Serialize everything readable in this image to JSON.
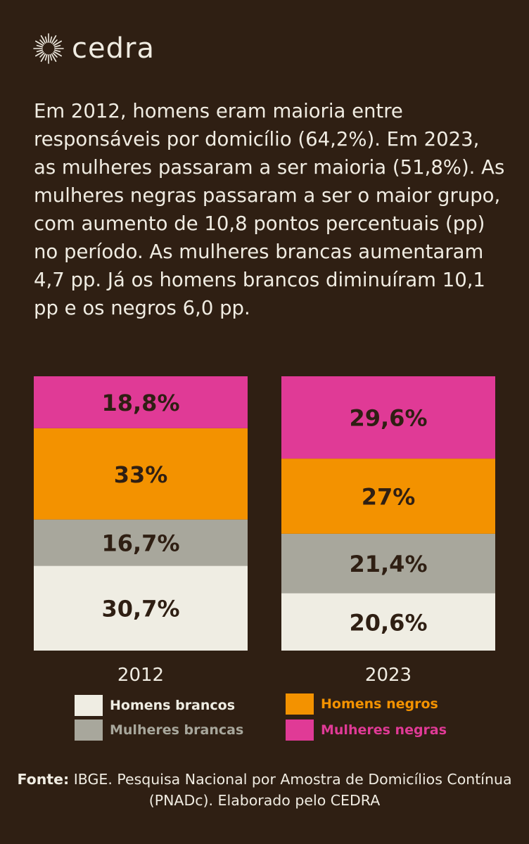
{
  "brand": {
    "name": "cedra",
    "logo_icon": "sun-burst-icon"
  },
  "intro": "Em 2012, homens eram maioria entre responsáveis por domicílio (64,2%). Em 2023, as mulheres passaram a ser maioria (51,8%). As mulheres negras passaram a ser o maior grupo, com aumento de 10,8 pontos percentuais (pp) no período. As mulheres brancas aumentaram 4,7 pp. Já os homens brancos diminuíram 10,1 pp e os negros 6,0 pp.",
  "colors": {
    "background": "#2f1f13",
    "homens_brancos": "#efede3",
    "mulheres_brancas": "#a8a79c",
    "homens_negros": "#f39200",
    "mulheres_negras": "#e03a96",
    "text_dark": "#2f1f13",
    "text_light": "#f0ece2"
  },
  "chart_data": {
    "type": "bar",
    "stacked": true,
    "categories": [
      "2012",
      "2023"
    ],
    "series": [
      {
        "name": "Homens brancos",
        "key": "homens_brancos",
        "values": [
          30.7,
          20.6
        ],
        "labels": [
          "30,7%",
          "20,6%"
        ]
      },
      {
        "name": "Mulheres brancas",
        "key": "mulheres_brancas",
        "values": [
          16.7,
          21.4
        ],
        "labels": [
          "16,7%",
          "21,4%"
        ]
      },
      {
        "name": "Homens negros",
        "key": "homens_negros",
        "values": [
          33.0,
          27.0
        ],
        "labels": [
          "33%",
          "27%"
        ]
      },
      {
        "name": "Mulheres negras",
        "key": "mulheres_negras",
        "values": [
          18.8,
          29.6
        ],
        "labels": [
          "18,8%",
          "29,6%"
        ]
      }
    ],
    "ylim": [
      0,
      100
    ],
    "grid": false,
    "legend_position": "bottom"
  },
  "legend": [
    {
      "label": "Homens brancos",
      "key": "homens_brancos",
      "text_color": "#efede3"
    },
    {
      "label": "Homens negros",
      "key": "homens_negros",
      "text_color": "#f39200"
    },
    {
      "label": "Mulheres brancas",
      "key": "mulheres_brancas",
      "text_color": "#a8a79c"
    },
    {
      "label": "Mulheres negras",
      "key": "mulheres_negras",
      "text_color": "#e03a96"
    }
  ],
  "source": {
    "label": "Fonte:",
    "text": " IBGE. Pesquisa Nacional por Amostra de Domicílios Contínua (PNADc). Elaborado pelo CEDRA"
  }
}
